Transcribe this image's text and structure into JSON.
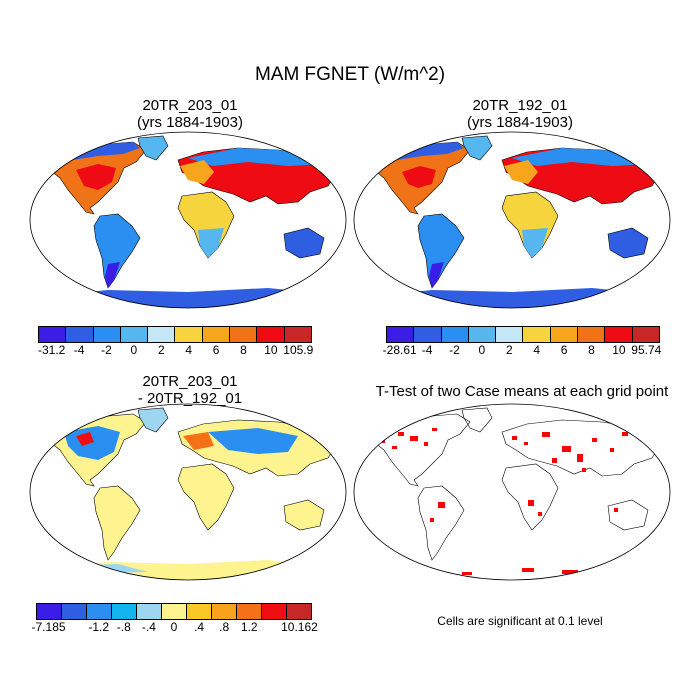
{
  "title": "MAM FGNET (W/m^2)",
  "panels": [
    {
      "title_line1": "20TR_203_01",
      "title_line2": "(yrs 1884-1903)"
    },
    {
      "title_line1": "20TR_192_01",
      "title_line2": "(yrs 1884-1903)"
    },
    {
      "title_line1": "20TR_203_01",
      "title_line2": "- 20TR_192_01"
    },
    {
      "title_line1": "T-Test of two Case means at each grid point"
    }
  ],
  "colorbars": [
    {
      "colors": [
        "#3a1ee8",
        "#2f5ee3",
        "#2a8ff0",
        "#56b6ef",
        "#c5e6f4",
        "#f6d43e",
        "#f6a51d",
        "#f07417",
        "#ef0b14",
        "#c6282a"
      ],
      "labels": [
        "-31.2",
        "-4",
        "-2",
        "0",
        "2",
        "4",
        "6",
        "8",
        "10",
        "105.9"
      ]
    },
    {
      "colors": [
        "#3a1ee8",
        "#2f5ee3",
        "#2a8ff0",
        "#56b6ef",
        "#c5e6f4",
        "#f6d43e",
        "#f6a51d",
        "#f07417",
        "#ef0b14",
        "#c6282a"
      ],
      "labels": [
        "-28.61",
        "-4",
        "-2",
        "0",
        "2",
        "4",
        "6",
        "8",
        "10",
        "95.74"
      ]
    },
    {
      "colors": [
        "#3a1ee8",
        "#2f5ee3",
        "#2a8ff0",
        "#12b4f0",
        "#9ed6f2",
        "#fdf48f",
        "#f9c827",
        "#f9a21c",
        "#f57117",
        "#f00e13",
        "#c6282a"
      ],
      "labels": [
        "-7.185",
        "",
        "-1.2",
        "-.8",
        "-.4",
        "0",
        ".4",
        ".8",
        "1.2",
        "",
        "10.162"
      ]
    }
  ],
  "significance_note": "Cells are significant at 0.1 level",
  "colors": {
    "significant": "#ff0000",
    "ocean": "#ffffff",
    "coastline": "#000000"
  }
}
